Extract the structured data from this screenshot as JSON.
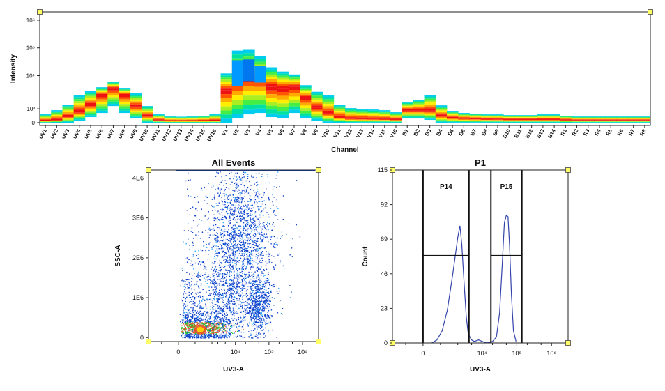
{
  "chart_data": [
    {
      "type": "heatmap",
      "ylabel": "Intensity",
      "xlabel": "Channel",
      "y_scale": "biexponential",
      "y_tick_labels": [
        "0",
        "10³",
        "10⁴",
        "10⁵",
        "10⁶"
      ],
      "y_tick_values": [
        0,
        1000,
        10000,
        100000,
        1000000
      ],
      "ylim": [
        -300,
        2000000
      ],
      "categories": [
        "UV1",
        "UV2",
        "UV3",
        "UV4",
        "UV5",
        "UV6",
        "UV7",
        "UV8",
        "UV9",
        "UV10",
        "UV11",
        "UV12",
        "UV13",
        "UV14",
        "UV15",
        "UV16",
        "V1",
        "V2",
        "V3",
        "V4",
        "V5",
        "V6",
        "V7",
        "V8",
        "V9",
        "V10",
        "V11",
        "V12",
        "V13",
        "V14",
        "V15",
        "V16",
        "B1",
        "B2",
        "B3",
        "B4",
        "B5",
        "B6",
        "B7",
        "B8",
        "B9",
        "B10",
        "B11",
        "B12",
        "B13",
        "B14",
        "R1",
        "R2",
        "R3",
        "R4",
        "R5",
        "R6",
        "R7",
        "R8"
      ],
      "band_top": [
        600,
        900,
        1300,
        2000,
        2800,
        3800,
        6000,
        3600,
        2300,
        1200,
        600,
        450,
        430,
        450,
        500,
        600,
        12000,
        80000,
        85000,
        50000,
        20000,
        14000,
        11000,
        4500,
        2600,
        2000,
        1300,
        1050,
        1000,
        950,
        900,
        750,
        1500,
        1650,
        2000,
        1250,
        850,
        700,
        650,
        600,
        600,
        550,
        550,
        550,
        600,
        600,
        500,
        450,
        450,
        450,
        450,
        450,
        450,
        450
      ],
      "band_bottom": [
        0,
        0,
        0,
        150,
        400,
        700,
        1200,
        700,
        300,
        0,
        0,
        0,
        0,
        0,
        0,
        0,
        0,
        300,
        600,
        700,
        400,
        300,
        700,
        300,
        150,
        0,
        0,
        0,
        0,
        0,
        0,
        0,
        300,
        300,
        200,
        0,
        0,
        0,
        0,
        0,
        0,
        0,
        0,
        0,
        0,
        0,
        0,
        0,
        0,
        0,
        0,
        0,
        0,
        0
      ],
      "band_peak": [
        150,
        200,
        450,
        800,
        1300,
        2000,
        3500,
        2000,
        1200,
        500,
        180,
        130,
        130,
        130,
        130,
        150,
        3000,
        6000,
        9000,
        8000,
        4000,
        3500,
        4000,
        1800,
        1100,
        700,
        400,
        300,
        280,
        270,
        260,
        230,
        900,
        900,
        900,
        500,
        350,
        300,
        280,
        260,
        250,
        230,
        230,
        230,
        230,
        230,
        200,
        180,
        180,
        180,
        180,
        180,
        180,
        180
      ],
      "grid": false
    },
    {
      "type": "scatter",
      "title": "All Events",
      "xlabel": "UV3-A",
      "ylabel": "SSC-A",
      "x_scale": "biexponential",
      "x_tick_labels": [
        "0",
        "10⁴",
        "10⁵",
        "10⁶"
      ],
      "x_tick_values": [
        0,
        10000,
        100000,
        1000000
      ],
      "xlim": [
        -3000,
        3000000
      ],
      "y_tick_labels": [
        "0",
        "1E6",
        "2E6",
        "3E6",
        "4E6"
      ],
      "y_tick_values": [
        0,
        1000000,
        2000000,
        3000000,
        4000000
      ],
      "ylim": [
        -100000,
        4200000
      ],
      "populations": [
        {
          "x_center": 1300,
          "y_center": 250000,
          "x_spread": 0.35,
          "y_spread": 180000,
          "count": 900,
          "note": "dense"
        },
        {
          "x_center": 2500,
          "y_center": 900000,
          "x_spread": 0.45,
          "y_spread": 500000,
          "count": 700
        },
        {
          "x_center": 45000,
          "y_center": 800000,
          "x_spread": 0.18,
          "y_spread": 350000,
          "count": 600
        },
        {
          "x_center": 12000,
          "y_center": 2400000,
          "x_spread": 0.55,
          "y_spread": 1000000,
          "count": 2000
        }
      ],
      "grid": false
    },
    {
      "type": "line",
      "title": "P1",
      "xlabel": "UV3-A",
      "ylabel": "Count",
      "x_scale": "biexponential",
      "x_tick_labels": [
        "0",
        "10⁴",
        "10⁵",
        "10⁶"
      ],
      "x_tick_values": [
        0,
        10000,
        100000,
        1000000
      ],
      "xlim": [
        -3000,
        3000000
      ],
      "y_tick_labels": [
        "0",
        "23",
        "46",
        "69",
        "92",
        "115"
      ],
      "y_tick_values": [
        0,
        23,
        46,
        69,
        92,
        115
      ],
      "ylim": [
        0,
        115
      ],
      "series": [
        {
          "values_note": "histogram",
          "x": [
            500,
            800,
            1100,
            1400,
            1700,
            2000,
            2300,
            2600,
            3000,
            3500,
            4000,
            5000,
            6000,
            8000,
            10000,
            14000,
            20000,
            26000,
            32000,
            38000,
            44000,
            50000,
            56000,
            62000,
            70000,
            80000,
            95000
          ],
          "y": [
            0,
            2,
            8,
            22,
            45,
            70,
            78,
            66,
            42,
            18,
            6,
            2,
            1,
            2,
            1,
            0,
            1,
            4,
            20,
            52,
            80,
            85,
            84,
            65,
            32,
            8,
            1
          ]
        }
      ],
      "gates": [
        {
          "label": "P14",
          "x_min": 0,
          "x_max": 4200,
          "y": 58
        },
        {
          "label": "P15",
          "x_min": 18000,
          "x_max": 140000,
          "y": 58
        }
      ],
      "grid": false
    }
  ]
}
